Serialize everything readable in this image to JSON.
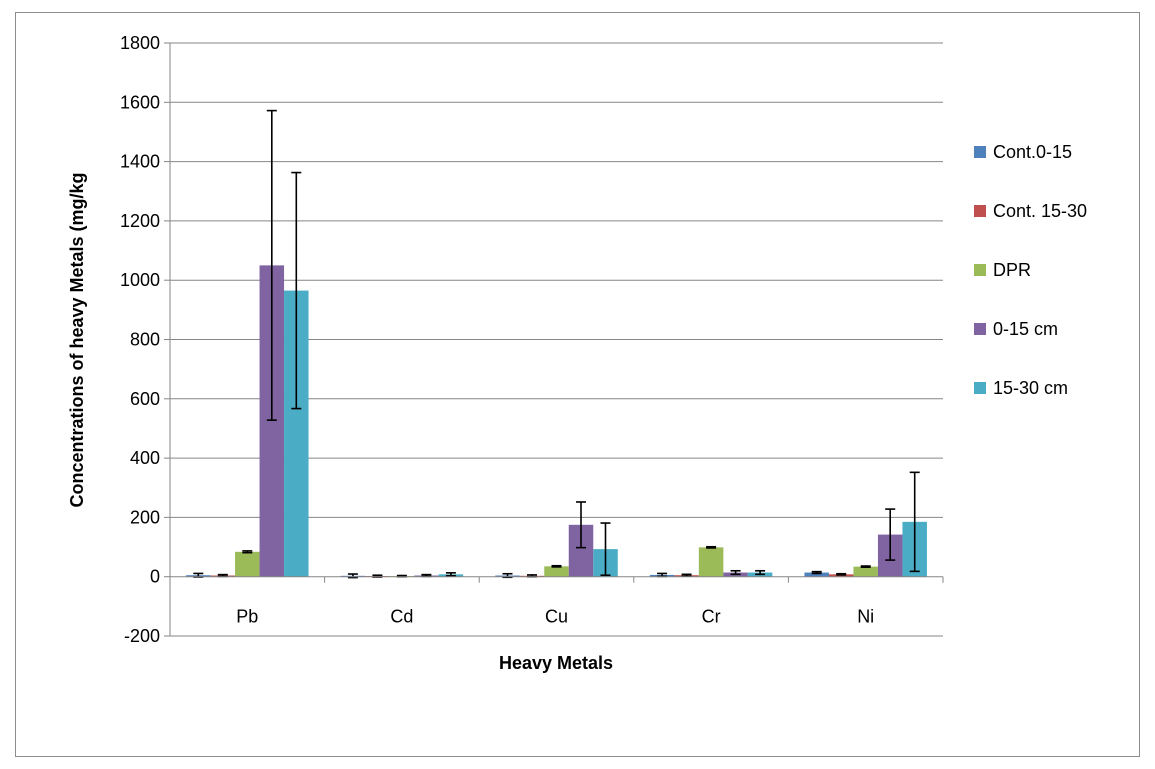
{
  "chart_data": {
    "type": "bar",
    "title": "",
    "xlabel": "Heavy Metals",
    "ylabel": "Concentrations of heavy Metals (mg/kg",
    "ylim": [
      -200,
      1800
    ],
    "yticks": [
      -200,
      0,
      200,
      400,
      600,
      800,
      1000,
      1200,
      1400,
      1600,
      1800
    ],
    "grid": true,
    "legend_position": "right",
    "categories": [
      "Pb",
      "Cd",
      "Cu",
      "Cr",
      "Ni"
    ],
    "series": [
      {
        "name": "Cont.0-15",
        "color": "#4f81bd",
        "values": [
          5,
          3,
          4,
          6,
          14
        ],
        "errors": [
          6,
          6,
          6,
          5,
          3
        ]
      },
      {
        "name": "Cont. 15-30",
        "color": "#c0504d",
        "values": [
          4,
          2,
          3,
          5,
          8
        ],
        "errors": [
          3,
          3,
          3,
          3,
          2
        ]
      },
      {
        "name": "DPR",
        "color": "#9bbb59",
        "values": [
          84,
          2,
          35,
          99,
          34
        ],
        "errors": [
          3,
          2,
          2,
          2,
          2
        ]
      },
      {
        "name": "0-15 cm",
        "color": "#8064a2",
        "values": [
          1050,
          4,
          175,
          14,
          142
        ],
        "errors": [
          522,
          3,
          77,
          6,
          86
        ]
      },
      {
        "name": "15-30 cm",
        "color": "#4bacc6",
        "values": [
          965,
          8,
          93,
          14,
          185
        ],
        "errors": [
          398,
          5,
          88,
          6,
          167
        ]
      }
    ]
  }
}
